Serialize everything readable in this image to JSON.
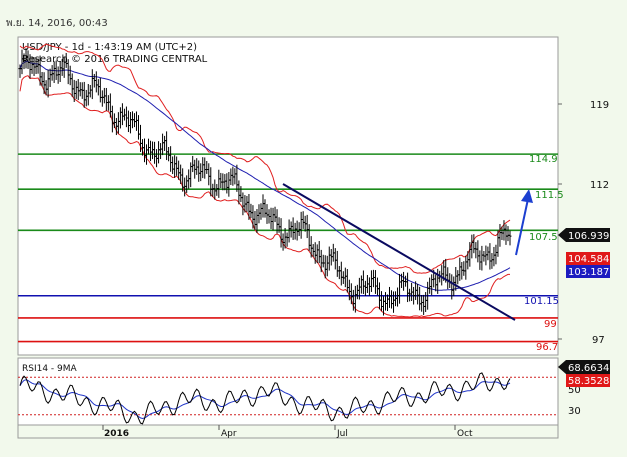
{
  "timestamp": "พ.ย. 14, 2016, 00:43",
  "header": {
    "line1": "USD/JPY - 1d - 1:43:19 AM (UTC+2)",
    "line2": "Research © 2016 TRADING CENTRAL"
  },
  "colors": {
    "background": "#f2f9ec",
    "price_panel": "#ffffff",
    "green_level": "#1a8a1a",
    "blue_level": "#1010b0",
    "red_level": "#dd1111",
    "trendline": "#0a0a60",
    "bollinger": "#e02020",
    "ma": "#1f1fb0",
    "arrow": "#1c3fd0",
    "rsi": "#000000",
    "rsi_ma": "#2035c8",
    "rsi_level": "#d02020"
  },
  "chart_data": [
    {
      "type": "line",
      "title": "USD/JPY - 1d - 1:43:19 AM (UTC+2)",
      "y_ticks": [
        119,
        112,
        97
      ],
      "x_ticks": [
        "2016",
        "Apr",
        "Jul",
        "Oct"
      ],
      "ylim": [
        95.8,
        125.3
      ],
      "x_months": [
        "2015-11",
        "2015-12",
        "2016-01",
        "2016-02",
        "2016-03",
        "2016-04",
        "2016-05",
        "2016-06",
        "2016-07",
        "2016-08",
        "2016-09",
        "2016-10",
        "2016-11"
      ],
      "series": [
        {
          "values": [
            123.2,
            122.6,
            120.4,
            116.3,
            113.1,
            112.4,
            108.5,
            107.0,
            102.3,
            101.2,
            101.6,
            104.5,
            106.9
          ]
        }
      ],
      "resistance_levels": [
        {
          "label": "114.9",
          "value": 114.9
        },
        {
          "label": "111.5",
          "value": 111.5
        },
        {
          "label": "107.5",
          "value": 107.5
        }
      ],
      "support_levels": [
        {
          "label": "101.15",
          "value": 101.15
        },
        {
          "label": "99",
          "value": 99
        },
        {
          "label": "96.7",
          "value": 96.7
        }
      ],
      "price_tags": [
        {
          "label": "106.939",
          "value": 106.939
        },
        {
          "label": "104.584",
          "value": 104.584
        },
        {
          "label": "103.187",
          "value": 103.187
        }
      ]
    },
    {
      "type": "line",
      "title": "RSI14 - 9MA",
      "y_ticks": [
        50,
        30
      ],
      "ylim": [
        17,
        82
      ],
      "x_months": [
        "2015-11",
        "2015-12",
        "2016-01",
        "2016-02",
        "2016-03",
        "2016-04",
        "2016-05",
        "2016-06",
        "2016-07",
        "2016-08",
        "2016-09",
        "2016-10",
        "2016-11"
      ],
      "series": [
        {
          "values": [
            61,
            52,
            40,
            28,
            47,
            42,
            56,
            40,
            33,
            46,
            52,
            60,
            68.66
          ]
        },
        {
          "values": [
            57,
            55,
            45,
            35,
            41,
            45,
            50,
            44,
            38,
            42,
            48,
            55,
            58.35
          ]
        }
      ],
      "price_tags": [
        {
          "label": "68.6634",
          "value": 68.6634
        },
        {
          "label": "58.3528",
          "value": 58.3528
        }
      ]
    }
  ]
}
